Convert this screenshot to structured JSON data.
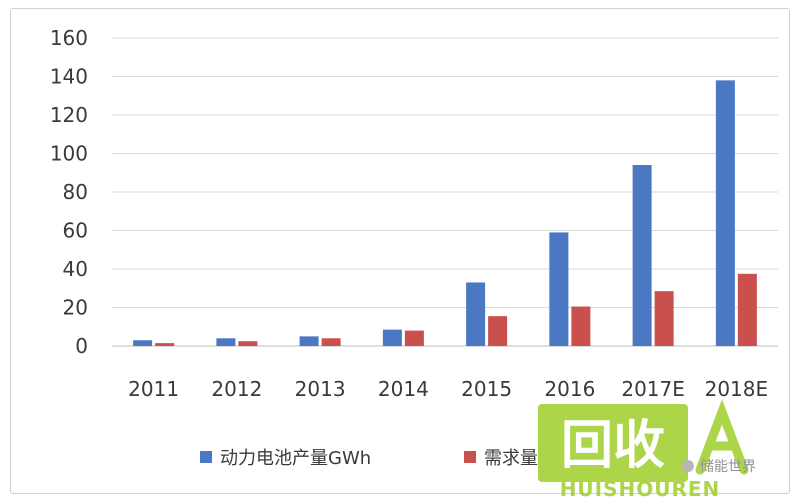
{
  "chart_data": {
    "type": "bar",
    "title": "",
    "xlabel": "",
    "ylabel": "",
    "categories": [
      "2011",
      "2012",
      "2013",
      "2014",
      "2015",
      "2016",
      "2017E",
      "2018E"
    ],
    "series": [
      {
        "name": "动力电池产量GWh",
        "values": [
          3,
          4,
          5,
          8.5,
          33,
          59,
          94,
          138
        ],
        "color": "#4a78c2"
      },
      {
        "name": "需求量",
        "values": [
          1.5,
          2.5,
          4,
          8,
          15.5,
          20.5,
          28.5,
          37.5
        ],
        "color": "#c9504c"
      }
    ],
    "ylim": [
      0,
      160
    ],
    "yticks": [
      0,
      20,
      40,
      60,
      80,
      100,
      120,
      140,
      160
    ],
    "grid": true,
    "legend_position": "bottom"
  },
  "watermark": {
    "brand_cn": "回收",
    "brand_en": "HUISHOUREN",
    "account": "储能世界",
    "color": "#a6d23a"
  }
}
